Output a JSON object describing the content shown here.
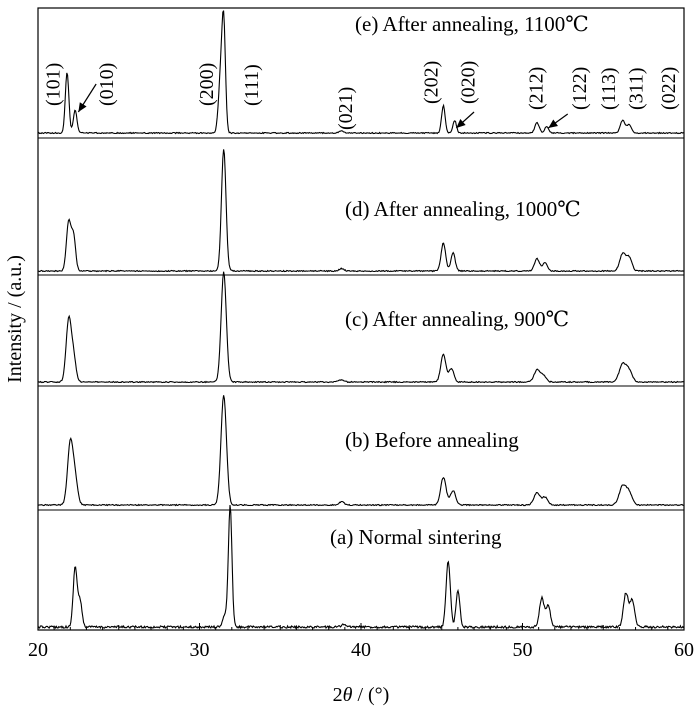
{
  "chart_data": {
    "type": "line",
    "xlabel": "2θ / (°)",
    "ylabel": "Intensity / (a.u.)",
    "xlim": [
      20,
      60
    ],
    "x_ticks": [
      20,
      30,
      40,
      50,
      60
    ],
    "x_tick_labels": [
      "20",
      "30",
      "40",
      "50",
      "60"
    ],
    "grid": false,
    "legend": "none",
    "series": [
      {
        "label": "(a)  Normal sintering",
        "peaks": [
          {
            "x": 22.3,
            "h": 0.5,
            "w": 0.12
          },
          {
            "x": 22.6,
            "h": 0.22,
            "w": 0.12
          },
          {
            "x": 31.6,
            "h": 0.1,
            "w": 0.15
          },
          {
            "x": 31.9,
            "h": 1.0,
            "w": 0.11
          },
          {
            "x": 38.9,
            "h": 0.02,
            "w": 0.15
          },
          {
            "x": 45.4,
            "h": 0.55,
            "w": 0.13
          },
          {
            "x": 46.0,
            "h": 0.3,
            "w": 0.12
          },
          {
            "x": 51.2,
            "h": 0.24,
            "w": 0.15
          },
          {
            "x": 51.6,
            "h": 0.18,
            "w": 0.13
          },
          {
            "x": 56.4,
            "h": 0.28,
            "w": 0.15
          },
          {
            "x": 56.8,
            "h": 0.22,
            "w": 0.15
          }
        ]
      },
      {
        "label": "(b)  Before annealing",
        "peaks": [
          {
            "x": 22.0,
            "h": 0.56,
            "w": 0.17
          },
          {
            "x": 22.3,
            "h": 0.22,
            "w": 0.16
          },
          {
            "x": 31.5,
            "h": 1.0,
            "w": 0.17
          },
          {
            "x": 38.8,
            "h": 0.03,
            "w": 0.16
          },
          {
            "x": 45.1,
            "h": 0.25,
            "w": 0.17
          },
          {
            "x": 45.7,
            "h": 0.13,
            "w": 0.16
          },
          {
            "x": 50.9,
            "h": 0.11,
            "w": 0.19
          },
          {
            "x": 51.4,
            "h": 0.07,
            "w": 0.17
          },
          {
            "x": 56.2,
            "h": 0.17,
            "w": 0.21
          },
          {
            "x": 56.6,
            "h": 0.11,
            "w": 0.19
          }
        ]
      },
      {
        "label": "(c)  After annealing, 900℃",
        "peaks": [
          {
            "x": 21.9,
            "h": 0.56,
            "w": 0.16
          },
          {
            "x": 22.2,
            "h": 0.22,
            "w": 0.15
          },
          {
            "x": 31.5,
            "h": 1.0,
            "w": 0.16
          },
          {
            "x": 38.8,
            "h": 0.02,
            "w": 0.16
          },
          {
            "x": 45.1,
            "h": 0.25,
            "w": 0.16
          },
          {
            "x": 45.6,
            "h": 0.12,
            "w": 0.15
          },
          {
            "x": 50.9,
            "h": 0.11,
            "w": 0.18
          },
          {
            "x": 51.3,
            "h": 0.06,
            "w": 0.16
          },
          {
            "x": 56.2,
            "h": 0.16,
            "w": 0.21
          },
          {
            "x": 56.6,
            "h": 0.1,
            "w": 0.19
          }
        ]
      },
      {
        "label": "(d)  After annealing, 1000℃",
        "peaks": [
          {
            "x": 21.9,
            "h": 0.4,
            "w": 0.14
          },
          {
            "x": 22.2,
            "h": 0.28,
            "w": 0.13
          },
          {
            "x": 31.5,
            "h": 1.0,
            "w": 0.14
          },
          {
            "x": 38.8,
            "h": 0.02,
            "w": 0.15
          },
          {
            "x": 45.1,
            "h": 0.23,
            "w": 0.14
          },
          {
            "x": 45.7,
            "h": 0.15,
            "w": 0.13
          },
          {
            "x": 50.9,
            "h": 0.1,
            "w": 0.16
          },
          {
            "x": 51.4,
            "h": 0.07,
            "w": 0.14
          },
          {
            "x": 56.2,
            "h": 0.14,
            "w": 0.18
          },
          {
            "x": 56.6,
            "h": 0.11,
            "w": 0.17
          }
        ]
      },
      {
        "label": "(e) After annealing, 1100℃",
        "peaks": [
          {
            "x": 21.8,
            "h": 0.58,
            "w": 0.11
          },
          {
            "x": 22.3,
            "h": 0.22,
            "w": 0.11
          },
          {
            "x": 31.3,
            "h": 0.5,
            "w": 0.13
          },
          {
            "x": 31.5,
            "h": 1.0,
            "w": 0.11
          },
          {
            "x": 38.8,
            "h": 0.02,
            "w": 0.15
          },
          {
            "x": 45.1,
            "h": 0.26,
            "w": 0.11
          },
          {
            "x": 45.8,
            "h": 0.12,
            "w": 0.11
          },
          {
            "x": 50.9,
            "h": 0.1,
            "w": 0.13
          },
          {
            "x": 51.5,
            "h": 0.06,
            "w": 0.12
          },
          {
            "x": 56.2,
            "h": 0.12,
            "w": 0.14
          },
          {
            "x": 56.6,
            "h": 0.08,
            "w": 0.14
          }
        ]
      }
    ],
    "annotations": [
      {
        "text": "(101)",
        "x": 20.9
      },
      {
        "text": "(010)",
        "x": 24.2
      },
      {
        "text": "(200)",
        "x": 30.4
      },
      {
        "text": "(111)",
        "x": 33.2
      },
      {
        "text": "(021)",
        "x": 39.0
      },
      {
        "text": "(202)",
        "x": 44.3
      },
      {
        "text": "(020)",
        "x": 46.6
      },
      {
        "text": "(212)",
        "x": 50.8
      },
      {
        "text": "(122)",
        "x": 53.5
      },
      {
        "text": "(113)",
        "x": 55.3
      },
      {
        "text": "(311)",
        "x": 57.0
      },
      {
        "text": "(022)",
        "x": 59.0
      }
    ]
  }
}
